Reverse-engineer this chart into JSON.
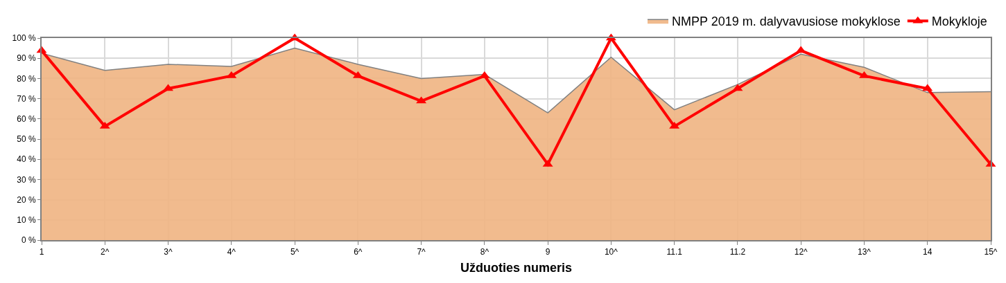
{
  "chart_data": {
    "type": "area",
    "xlabel": "Užduoties numeris",
    "categories": [
      "1",
      "2^",
      "3^",
      "4^",
      "5^",
      "6^",
      "7^",
      "8^",
      "9",
      "10^",
      "11.1",
      "11.2",
      "12^",
      "13^",
      "14",
      "15^"
    ],
    "series": [
      {
        "name": "NMPP 2019 m. dalyvavusiose mokyklose",
        "color": "#f0b482",
        "values": [
          92.5,
          84,
          87,
          86,
          95,
          87,
          80,
          82,
          63,
          90.5,
          64.5,
          77,
          92,
          85.5,
          73,
          73.5
        ]
      },
      {
        "name": "Mokykloje",
        "type": "line",
        "color": "#ff0000",
        "marker": "triangle",
        "values": [
          93.8,
          56.3,
          75,
          81.3,
          100,
          81.3,
          68.8,
          81.3,
          37.5,
          100,
          56.3,
          75,
          93.8,
          81.3,
          75,
          37.5
        ]
      }
    ],
    "ylim": [
      0,
      100
    ],
    "yticks": [
      {
        "value": 0,
        "label": "0 %"
      },
      {
        "value": 10,
        "label": "10 %"
      },
      {
        "value": 20,
        "label": "20 %"
      },
      {
        "value": 30,
        "label": "30 %"
      },
      {
        "value": 40,
        "label": "40 %"
      },
      {
        "value": 50,
        "label": "50 %"
      },
      {
        "value": 60,
        "label": "60 %"
      },
      {
        "value": 70,
        "label": "70 %"
      },
      {
        "value": 80,
        "label": "80 %"
      },
      {
        "value": 90,
        "label": "90 %"
      },
      {
        "value": 100,
        "label": "100 %"
      }
    ],
    "grid": true,
    "legend": "top right"
  }
}
